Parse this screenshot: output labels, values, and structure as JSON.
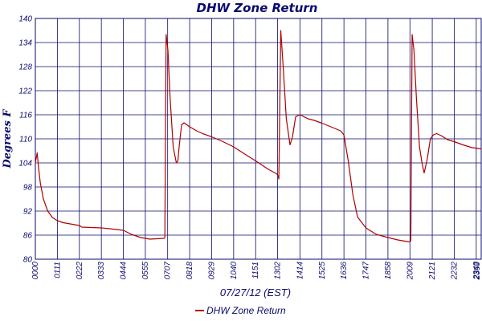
{
  "chart_data": {
    "type": "line",
    "title": "DHW Zone Return",
    "xlabel": "07/27/12 (EST)",
    "ylabel": "Degrees F",
    "ylim": [
      80,
      140
    ],
    "yticks": [
      "80",
      "86",
      "92",
      "98",
      "104",
      "110",
      "116",
      "122",
      "128",
      "134",
      "140"
    ],
    "xticks": [
      "00:00",
      "01:11",
      "02:22",
      "03:33",
      "04:44",
      "05:55",
      "07:07",
      "08:18",
      "09:29",
      "10:40",
      "11:51",
      "13:02",
      "14:14",
      "15:25",
      "16:36",
      "17:47",
      "18:58",
      "20:09",
      "21:21",
      "22:32",
      "23:43",
      "23:59"
    ],
    "xlim_minutes": [
      0,
      1439
    ],
    "grid": true,
    "legend": {
      "position": "bottom",
      "entries": [
        "DHW Zone Return"
      ]
    },
    "colors": {
      "series": "#b00000",
      "grid": "#0a0a6e",
      "text": "#0a0a6e"
    },
    "series": [
      {
        "name": "DHW Zone Return",
        "points": [
          [
            "00:00",
            104.0
          ],
          [
            "00:06",
            106.5
          ],
          [
            "00:10",
            103.0
          ],
          [
            "00:16",
            99.0
          ],
          [
            "00:26",
            95.0
          ],
          [
            "00:40",
            92.0
          ],
          [
            "00:55",
            90.4
          ],
          [
            "01:11",
            89.6
          ],
          [
            "01:30",
            89.1
          ],
          [
            "02:00",
            88.7
          ],
          [
            "02:22",
            88.4
          ],
          [
            "02:30",
            88.0
          ],
          [
            "03:00",
            87.9
          ],
          [
            "03:33",
            87.8
          ],
          [
            "04:00",
            87.6
          ],
          [
            "04:44",
            87.2
          ],
          [
            "05:10",
            86.2
          ],
          [
            "05:40",
            85.4
          ],
          [
            "06:10",
            85.0
          ],
          [
            "06:55",
            85.2
          ],
          [
            "06:58",
            85.3
          ],
          [
            "07:02",
            136.0
          ],
          [
            "07:08",
            132.0
          ],
          [
            "07:15",
            120.0
          ],
          [
            "07:25",
            108.0
          ],
          [
            "07:35",
            104.0
          ],
          [
            "07:40",
            104.5
          ],
          [
            "07:44",
            108.0
          ],
          [
            "07:52",
            113.5
          ],
          [
            "08:00",
            114.0
          ],
          [
            "08:18",
            113.0
          ],
          [
            "08:40",
            112.0
          ],
          [
            "09:00",
            111.3
          ],
          [
            "09:29",
            110.5
          ],
          [
            "10:00",
            109.5
          ],
          [
            "10:40",
            108.0
          ],
          [
            "11:20",
            106.0
          ],
          [
            "11:51",
            104.5
          ],
          [
            "12:30",
            102.5
          ],
          [
            "12:58",
            101.3
          ],
          [
            "13:02",
            101.0
          ],
          [
            "13:06",
            100.0
          ],
          [
            "13:12",
            137.0
          ],
          [
            "13:20",
            128.0
          ],
          [
            "13:30",
            115.0
          ],
          [
            "13:42",
            108.5
          ],
          [
            "13:50",
            110.5
          ],
          [
            "14:00",
            115.5
          ],
          [
            "14:14",
            116.0
          ],
          [
            "14:40",
            115.0
          ],
          [
            "15:00",
            114.6
          ],
          [
            "15:25",
            113.9
          ],
          [
            "16:00",
            112.8
          ],
          [
            "16:25",
            112.0
          ],
          [
            "16:36",
            111.0
          ],
          [
            "16:50",
            104.5
          ],
          [
            "17:05",
            96.0
          ],
          [
            "17:20",
            90.5
          ],
          [
            "17:47",
            87.8
          ],
          [
            "18:20",
            86.2
          ],
          [
            "18:58",
            85.4
          ],
          [
            "19:30",
            84.8
          ],
          [
            "20:00",
            84.4
          ],
          [
            "20:08",
            84.3
          ],
          [
            "20:12",
            84.6
          ],
          [
            "20:16",
            136.0
          ],
          [
            "20:22",
            132.0
          ],
          [
            "20:30",
            120.0
          ],
          [
            "20:40",
            108.0
          ],
          [
            "20:48",
            104.0
          ],
          [
            "20:55",
            101.5
          ],
          [
            "21:05",
            105.0
          ],
          [
            "21:15",
            110.0
          ],
          [
            "21:25",
            111.0
          ],
          [
            "21:35",
            111.3
          ],
          [
            "21:50",
            110.8
          ],
          [
            "22:10",
            109.8
          ],
          [
            "22:32",
            109.3
          ],
          [
            "23:00",
            108.5
          ],
          [
            "23:30",
            107.8
          ],
          [
            "23:59",
            107.5
          ]
        ]
      }
    ]
  }
}
